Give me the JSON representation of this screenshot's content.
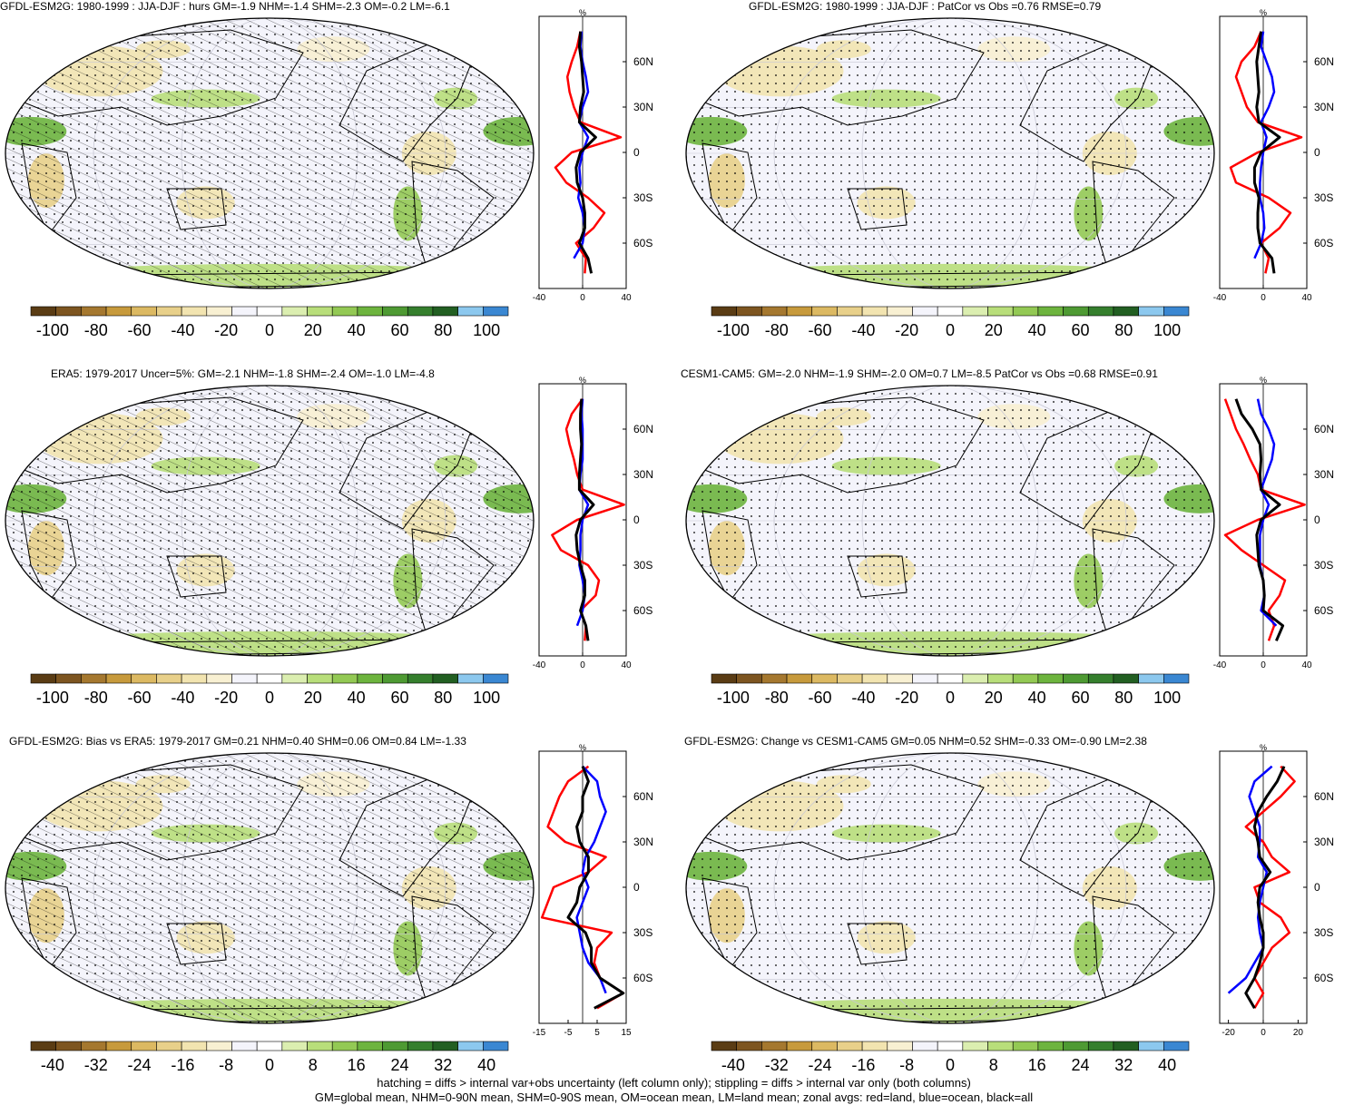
{
  "colors": {
    "bias_scale": [
      "#5a3c14",
      "#7d5520",
      "#a5782f",
      "#c79a3c",
      "#dcb962",
      "#e8d08a",
      "#f2e4b0",
      "#f8f0d2",
      "#f4f4fb",
      "#ffffff",
      "#dbeeb0",
      "#b8de7a",
      "#93c954",
      "#6db43e",
      "#4e9a33",
      "#357f2d",
      "#225f22",
      "#8cc8ee",
      "#3a87d2"
    ],
    "red_land": "#ff0000",
    "blue_ocean": "#0000ff",
    "black_all": "#000000"
  },
  "panels": [
    {
      "id": "p1",
      "title": "GFDL-ESM2G: 1980-1999 : JJA-DJF : hurs GM=-1.9 NHM=-1.4 SHM=-2.3 OM=-0.2 LM=-6.1",
      "colorbar_labels": [
        "-100",
        "-80",
        "-60",
        "-40",
        "-20",
        "0",
        "20",
        "40",
        "60",
        "80",
        "100"
      ],
      "zonal_ticks": [
        "-40",
        "0",
        "40"
      ],
      "hatching": true
    },
    {
      "id": "p2",
      "title": "GFDL-ESM2G: 1980-1999 : JJA-DJF : PatCor vs Obs =0.76 RMSE=0.79",
      "colorbar_labels": [
        "-100",
        "-80",
        "-60",
        "-40",
        "-20",
        "0",
        "20",
        "40",
        "60",
        "80",
        "100"
      ],
      "zonal_ticks": [
        "-40",
        "0",
        "40"
      ],
      "hatching": false
    },
    {
      "id": "p3",
      "title": "ERA5: 1979-2017 Uncer=5%: GM=-2.1 NHM=-1.8 SHM=-2.4 OM=-1.0 LM=-4.8",
      "colorbar_labels": [
        "-100",
        "-80",
        "-60",
        "-40",
        "-20",
        "0",
        "20",
        "40",
        "60",
        "80",
        "100"
      ],
      "zonal_ticks": [
        "-40",
        "0",
        "40"
      ],
      "hatching": true
    },
    {
      "id": "p4",
      "title": "CESM1-CAM5: GM=-2.0 NHM=-1.9 SHM=-2.0 OM=0.7 LM=-8.5 PatCor vs Obs =0.68 RMSE=0.91",
      "colorbar_labels": [
        "-100",
        "-80",
        "-60",
        "-40",
        "-20",
        "0",
        "20",
        "40",
        "60",
        "80",
        "100"
      ],
      "zonal_ticks": [
        "-40",
        "0",
        "40"
      ],
      "hatching": false
    },
    {
      "id": "p5",
      "title": "GFDL-ESM2G: Bias vs ERA5: 1979-2017 GM=0.21 NHM=0.40 SHM=0.06 OM=0.84 LM=-1.33",
      "colorbar_labels": [
        "-40",
        "-32",
        "-24",
        "-16",
        "-8",
        "0",
        "8",
        "16",
        "24",
        "32",
        "40"
      ],
      "zonal_ticks": [
        "-15",
        "-5",
        "5",
        "15"
      ],
      "hatching": true
    },
    {
      "id": "p6",
      "title": "GFDL-ESM2G: Change vs CESM1-CAM5 GM=0.05 NHM=0.52 SHM=-0.33 OM=-0.90 LM=2.38",
      "colorbar_labels": [
        "-40",
        "-32",
        "-24",
        "-16",
        "-8",
        "0",
        "8",
        "16",
        "24",
        "32",
        "40"
      ],
      "zonal_ticks": [
        "-20",
        "0",
        "20"
      ],
      "hatching": false
    }
  ],
  "chart_data": [
    {
      "type": "line",
      "panel": "p1",
      "ylabel": "%",
      "lat_labels": [
        "60N",
        "30N",
        "0",
        "30S",
        "60S"
      ],
      "xlim": [
        -40,
        40
      ],
      "lat": [
        80,
        70,
        60,
        50,
        40,
        30,
        20,
        10,
        0,
        -10,
        -20,
        -30,
        -40,
        -50,
        -60,
        -70,
        -80
      ],
      "series": [
        {
          "name": "land",
          "color": "red",
          "values": [
            -2,
            -5,
            -10,
            -14,
            -12,
            -8,
            -2,
            35,
            -10,
            -25,
            -15,
            5,
            20,
            10,
            -6,
            3,
            2
          ]
        },
        {
          "name": "ocean",
          "color": "blue",
          "values": [
            -1,
            -2,
            0,
            3,
            5,
            0,
            -3,
            5,
            0,
            -3,
            -2,
            -4,
            0,
            2,
            0,
            -8,
            null
          ]
        },
        {
          "name": "all",
          "color": "black",
          "values": [
            -2,
            -3,
            -1,
            0,
            1,
            -2,
            -3,
            12,
            -2,
            -6,
            -5,
            0,
            2,
            2,
            -3,
            5,
            8
          ]
        }
      ]
    },
    {
      "type": "line",
      "panel": "p2",
      "ylabel": "%",
      "lat_labels": [
        "60N",
        "30N",
        "0",
        "30S",
        "60S"
      ],
      "xlim": [
        -40,
        40
      ],
      "lat": [
        80,
        70,
        60,
        50,
        40,
        30,
        20,
        10,
        0,
        -10,
        -20,
        -30,
        -40,
        -50,
        -60,
        -70,
        -80
      ],
      "series": [
        {
          "name": "land",
          "color": "red",
          "values": [
            -2,
            -8,
            -20,
            -25,
            -20,
            -15,
            -5,
            35,
            -5,
            -30,
            -25,
            5,
            25,
            15,
            -2,
            5,
            2
          ]
        },
        {
          "name": "ocean",
          "color": "blue",
          "values": [
            0,
            -2,
            3,
            8,
            10,
            5,
            -2,
            3,
            0,
            -2,
            -3,
            -3,
            0,
            1,
            -2,
            -8,
            null
          ]
        },
        {
          "name": "all",
          "color": "black",
          "values": [
            -2,
            -4,
            -6,
            -5,
            -4,
            -6,
            -4,
            15,
            -2,
            -8,
            -8,
            -4,
            -5,
            -5,
            -3,
            8,
            10
          ]
        }
      ]
    },
    {
      "type": "line",
      "panel": "p3",
      "ylabel": "%",
      "lat_labels": [
        "60N",
        "30N",
        "0",
        "30S",
        "60S"
      ],
      "xlim": [
        -40,
        40
      ],
      "lat": [
        80,
        70,
        60,
        50,
        40,
        30,
        20,
        10,
        0,
        -10,
        -20,
        -30,
        -40,
        -50,
        -60,
        -70,
        -80
      ],
      "series": [
        {
          "name": "land",
          "color": "red",
          "values": [
            0,
            -10,
            -15,
            -12,
            -8,
            -5,
            0,
            38,
            -5,
            -28,
            -20,
            5,
            15,
            12,
            -2,
            3,
            2
          ]
        },
        {
          "name": "ocean",
          "color": "blue",
          "values": [
            0,
            -1,
            0,
            0,
            0,
            -2,
            -3,
            5,
            0,
            -2,
            -2,
            -3,
            0,
            2,
            0,
            -5,
            null
          ]
        },
        {
          "name": "all",
          "color": "black",
          "values": [
            -1,
            -2,
            -2,
            -1,
            -2,
            -3,
            -3,
            10,
            -2,
            -6,
            -5,
            -2,
            2,
            2,
            -2,
            3,
            5
          ]
        }
      ]
    },
    {
      "type": "line",
      "panel": "p4",
      "ylabel": "%",
      "lat_labels": [
        "60N",
        "30N",
        "0",
        "30S",
        "60S"
      ],
      "xlim": [
        -40,
        40
      ],
      "lat": [
        80,
        70,
        60,
        50,
        40,
        30,
        20,
        10,
        0,
        -10,
        -20,
        -30,
        -40,
        -50,
        -60,
        -70,
        -80
      ],
      "series": [
        {
          "name": "land",
          "color": "red",
          "values": [
            -35,
            -30,
            -25,
            -18,
            -12,
            -5,
            -2,
            38,
            -5,
            -35,
            -20,
            0,
            20,
            15,
            5,
            10,
            5
          ]
        },
        {
          "name": "ocean",
          "color": "blue",
          "values": [
            -5,
            -2,
            5,
            10,
            8,
            3,
            -2,
            5,
            0,
            -3,
            -3,
            -3,
            0,
            1,
            -2,
            12,
            null
          ]
        },
        {
          "name": "all",
          "color": "black",
          "values": [
            -25,
            -20,
            -10,
            -3,
            -2,
            -3,
            -2,
            15,
            -2,
            -6,
            -5,
            -4,
            0,
            1,
            0,
            18,
            12
          ]
        }
      ]
    },
    {
      "type": "line",
      "panel": "p5",
      "ylabel": "%",
      "lat_labels": [
        "60N",
        "30N",
        "0",
        "30S",
        "60S"
      ],
      "xlim": [
        -15,
        15
      ],
      "lat": [
        80,
        70,
        60,
        50,
        40,
        30,
        20,
        10,
        0,
        -10,
        -20,
        -30,
        -40,
        -50,
        -60,
        -70,
        -80
      ],
      "series": [
        {
          "name": "land",
          "color": "red",
          "values": [
            2,
            -5,
            -8,
            -10,
            -12,
            -6,
            8,
            2,
            -10,
            -12,
            -14,
            10,
            5,
            4,
            6,
            14,
            5
          ]
        },
        {
          "name": "ocean",
          "color": "blue",
          "values": [
            0,
            5,
            6,
            8,
            6,
            4,
            1,
            0,
            2,
            0,
            -2,
            -1,
            0,
            2,
            6,
            8,
            null
          ]
        },
        {
          "name": "all",
          "color": "black",
          "values": [
            0,
            2,
            0,
            0,
            -2,
            -1,
            2,
            2,
            -1,
            -2,
            -5,
            1,
            3,
            3,
            6,
            14,
            4
          ]
        }
      ]
    },
    {
      "type": "line",
      "panel": "p6",
      "ylabel": "%",
      "lat_labels": [
        "60N",
        "30N",
        "0",
        "30S",
        "60S"
      ],
      "xlim": [
        -25,
        25
      ],
      "lat": [
        80,
        70,
        60,
        50,
        40,
        30,
        20,
        10,
        0,
        -10,
        -20,
        -30,
        -40,
        -50,
        -60,
        -70,
        -80
      ],
      "series": [
        {
          "name": "land",
          "color": "red",
          "values": [
            10,
            18,
            10,
            0,
            -10,
            0,
            5,
            15,
            -5,
            -2,
            10,
            15,
            5,
            0,
            -5,
            0,
            -5
          ]
        },
        {
          "name": "ocean",
          "color": "blue",
          "values": [
            5,
            -5,
            -8,
            -5,
            -2,
            -2,
            -3,
            2,
            0,
            -2,
            -3,
            -2,
            0,
            -5,
            -10,
            -20,
            null
          ]
        },
        {
          "name": "all",
          "color": "black",
          "values": [
            12,
            8,
            2,
            -3,
            -5,
            -3,
            -2,
            4,
            -2,
            -3,
            -2,
            0,
            0,
            -2,
            -5,
            -10,
            -5
          ]
        }
      ]
    }
  ],
  "footer": {
    "line1": "hatching = diffs > internal var+obs uncertainty (left column only); stippling = diffs > internal var only (both columns)",
    "line2": "GM=global mean, NHM=0-90N mean, SHM=0-90S mean, OM=ocean mean, LM=land mean; zonal avgs: red=land, blue=ocean, black=all"
  }
}
